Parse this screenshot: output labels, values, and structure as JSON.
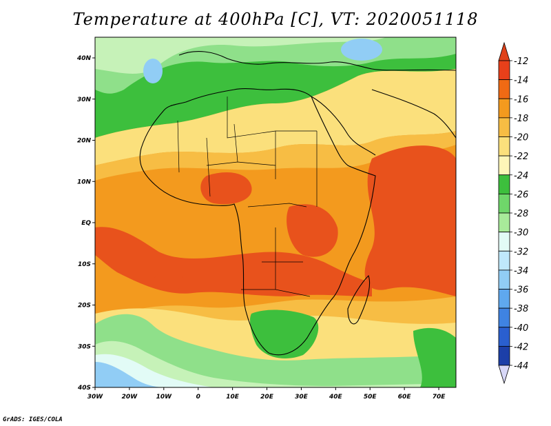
{
  "title": "Temperature at 400hPa [C], VT: 2020051118",
  "credit": "GrADS: IGES/COLA",
  "lon_ticks": [
    "30W",
    "20W",
    "10W",
    "0",
    "10E",
    "20E",
    "30E",
    "40E",
    "50E",
    "60E",
    "70E"
  ],
  "lat_ticks": [
    "40N",
    "30N",
    "20N",
    "10N",
    "EQ",
    "10S",
    "20S",
    "30S",
    "40S"
  ],
  "colorbar": {
    "labels": [
      "-12",
      "-14",
      "-16",
      "-18",
      "-20",
      "-22",
      "-24",
      "-26",
      "-28",
      "-30",
      "-32",
      "-34",
      "-36",
      "-38",
      "-40",
      "-42",
      "-44"
    ],
    "colors": [
      "#e8401a",
      "#f06a14",
      "#f39a1e",
      "#f7bd44",
      "#fbe07c",
      "#fdf6b8",
      "#3dbf3d",
      "#6fd66a",
      "#a8ea9a",
      "#e2fbf6",
      "#bfe8fb",
      "#91cdf5",
      "#5fa8ee",
      "#3f83e2",
      "#2a5fcf",
      "#1c3fa8",
      "#0b1a6e"
    ],
    "top_cap_color": "#e0421a",
    "bottom_cap_color": "#d8d8f8"
  },
  "field_colors": {
    "very_warm": "#e8521c",
    "warm": "#f39a1e",
    "mild": "#f7bd44",
    "cool": "#fbe07c",
    "pale": "#fdf6b8",
    "green": "#3dbf3d",
    "light_green": "#8fe08a",
    "pale_green": "#c6f2b8",
    "cyan": "#e2fbf6",
    "blue": "#91cdf5"
  }
}
